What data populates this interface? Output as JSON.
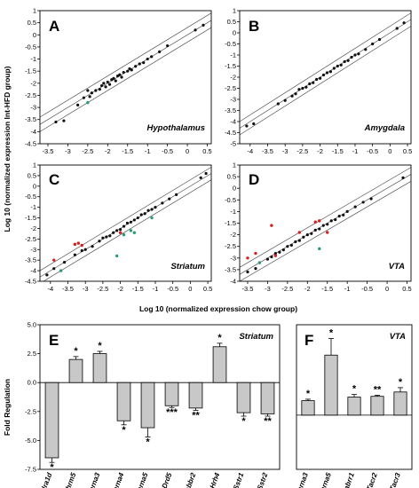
{
  "figure": {
    "scatter_y_label": "Log 10 (normalized expression Int-HFD group)",
    "scatter_x_label": "Log 10 (normalized expression chow group)",
    "bar_y_label": "Fold Regulation"
  },
  "chart_data": [
    {
      "type": "scatter",
      "panel": "A",
      "region": "Hypothalamus",
      "xlim": [
        -3.7,
        0.6
      ],
      "ylim": [
        -4.5,
        1.0
      ],
      "xticks": [
        -3.5,
        -3.0,
        -2.5,
        -2.0,
        -1.5,
        -1.0,
        -0.5,
        0.0,
        0.5
      ],
      "yticks": [
        -4.5,
        -4.0,
        -3.5,
        -3.0,
        -2.5,
        -2.0,
        -1.5,
        -1.0,
        -0.5,
        0.0,
        0.5,
        1.0
      ],
      "xtick_labels": [
        "-3.5",
        "-3",
        "-2.5",
        "-2",
        "-1.5",
        "-1",
        "-0.5",
        "0",
        "0.5"
      ],
      "ytick_labels": [
        "-4.5",
        "-4",
        "-3.5",
        "-3",
        "-2.5",
        "-2",
        "-1.5",
        "-1",
        "-0.5",
        "0",
        "0.5",
        "1"
      ],
      "boundary_offset": 0.3,
      "points": [
        [
          -3.3,
          -3.6
        ],
        [
          -3.1,
          -3.55
        ],
        [
          -2.75,
          -2.9
        ],
        [
          -2.6,
          -2.6
        ],
        [
          -2.5,
          -2.3
        ],
        [
          -2.45,
          -2.55
        ],
        [
          -2.4,
          -2.4
        ],
        [
          -2.3,
          -2.3
        ],
        [
          -2.2,
          -2.25
        ],
        [
          -2.15,
          -2.1
        ],
        [
          -2.1,
          -2.0
        ],
        [
          -2.05,
          -2.15
        ],
        [
          -2.0,
          -1.95
        ],
        [
          -1.95,
          -2.05
        ],
        [
          -1.9,
          -1.85
        ],
        [
          -1.85,
          -1.8
        ],
        [
          -1.8,
          -1.9
        ],
        [
          -1.75,
          -1.7
        ],
        [
          -1.7,
          -1.65
        ],
        [
          -1.65,
          -1.75
        ],
        [
          -1.6,
          -1.55
        ],
        [
          -1.5,
          -1.5
        ],
        [
          -1.45,
          -1.4
        ],
        [
          -1.4,
          -1.45
        ],
        [
          -1.3,
          -1.3
        ],
        [
          -1.2,
          -1.2
        ],
        [
          -1.1,
          -1.15
        ],
        [
          -1.0,
          -1.0
        ],
        [
          -0.9,
          -0.9
        ],
        [
          -0.7,
          -0.7
        ],
        [
          -0.5,
          -0.45
        ],
        [
          0.2,
          0.2
        ],
        [
          0.4,
          0.4
        ]
      ],
      "green_points": [
        [
          -2.5,
          -2.8
        ]
      ],
      "red_points": []
    },
    {
      "type": "scatter",
      "panel": "B",
      "region": "Amygdala",
      "xlim": [
        -4.3,
        0.6
      ],
      "ylim": [
        -5.0,
        1.0
      ],
      "xticks": [
        -4.0,
        -3.5,
        -3.0,
        -2.5,
        -2.0,
        -1.5,
        -1.0,
        -0.5,
        0.0,
        0.5
      ],
      "yticks": [
        -5.0,
        -4.5,
        -4.0,
        -3.5,
        -3.0,
        -2.5,
        -2.0,
        -1.5,
        -1.0,
        -0.5,
        0.0,
        0.5,
        1.0
      ],
      "xtick_labels": [
        "-4",
        "-3.5",
        "-3",
        "-2.5",
        "-2",
        "-1.5",
        "-1",
        "-0.5",
        "0",
        "0.5"
      ],
      "ytick_labels": [
        "-5",
        "-4.5",
        "-4",
        "-3.5",
        "-3",
        "-2.5",
        "-2",
        "-1.5",
        "-1",
        "-0.5",
        "0",
        "0.5",
        "1"
      ],
      "boundary_offset": 0.3,
      "points": [
        [
          -4.1,
          -4.2
        ],
        [
          -3.9,
          -4.1
        ],
        [
          -3.2,
          -3.2
        ],
        [
          -3.0,
          -3.05
        ],
        [
          -2.8,
          -2.85
        ],
        [
          -2.7,
          -2.75
        ],
        [
          -2.6,
          -2.55
        ],
        [
          -2.5,
          -2.5
        ],
        [
          -2.4,
          -2.45
        ],
        [
          -2.3,
          -2.3
        ],
        [
          -2.2,
          -2.25
        ],
        [
          -2.1,
          -2.1
        ],
        [
          -2.0,
          -2.05
        ],
        [
          -1.9,
          -1.9
        ],
        [
          -1.8,
          -1.8
        ],
        [
          -1.7,
          -1.75
        ],
        [
          -1.6,
          -1.6
        ],
        [
          -1.5,
          -1.5
        ],
        [
          -1.4,
          -1.45
        ],
        [
          -1.3,
          -1.3
        ],
        [
          -1.2,
          -1.25
        ],
        [
          -1.1,
          -1.1
        ],
        [
          -1.0,
          -1.0
        ],
        [
          -0.9,
          -0.95
        ],
        [
          -0.7,
          -0.75
        ],
        [
          -0.5,
          -0.5
        ],
        [
          -0.3,
          -0.3
        ],
        [
          0.2,
          0.2
        ],
        [
          0.4,
          0.45
        ]
      ],
      "green_points": [],
      "red_points": []
    },
    {
      "type": "scatter",
      "panel": "C",
      "region": "Striatum",
      "xlim": [
        -4.3,
        0.6
      ],
      "ylim": [
        -4.5,
        1.0
      ],
      "xticks": [
        -4.0,
        -3.5,
        -3.0,
        -2.5,
        -2.0,
        -1.5,
        -1.0,
        -0.5,
        0.0,
        0.5
      ],
      "yticks": [
        -4.5,
        -4.0,
        -3.5,
        -3.0,
        -2.5,
        -2.0,
        -1.5,
        -1.0,
        -0.5,
        0.0,
        0.5,
        1.0
      ],
      "xtick_labels": [
        "-4",
        "-3.5",
        "-3",
        "-2.5",
        "-2",
        "-1.5",
        "-1",
        "-0.5",
        "0",
        "0.5"
      ],
      "ytick_labels": [
        "-4.5",
        "-4",
        "-3.5",
        "-3",
        "-2.5",
        "-2",
        "-1.5",
        "-1",
        "-0.5",
        "0",
        "0.5",
        "1"
      ],
      "boundary_offset": 0.3,
      "points": [
        [
          -4.1,
          -4.2
        ],
        [
          -3.9,
          -3.9
        ],
        [
          -3.6,
          -3.6
        ],
        [
          -3.3,
          -3.25
        ],
        [
          -3.1,
          -3.05
        ],
        [
          -3.0,
          -3.0
        ],
        [
          -2.8,
          -2.85
        ],
        [
          -2.6,
          -2.6
        ],
        [
          -2.5,
          -2.45
        ],
        [
          -2.4,
          -2.4
        ],
        [
          -2.3,
          -2.35
        ],
        [
          -2.2,
          -2.2
        ],
        [
          -2.1,
          -2.1
        ],
        [
          -2.0,
          -2.05
        ],
        [
          -1.9,
          -1.9
        ],
        [
          -1.8,
          -1.75
        ],
        [
          -1.7,
          -1.7
        ],
        [
          -1.6,
          -1.6
        ],
        [
          -1.5,
          -1.5
        ],
        [
          -1.4,
          -1.35
        ],
        [
          -1.3,
          -1.3
        ],
        [
          -1.2,
          -1.15
        ],
        [
          -1.1,
          -1.1
        ],
        [
          -1.0,
          -1.0
        ],
        [
          -0.8,
          -0.8
        ],
        [
          -0.6,
          -0.6
        ],
        [
          -0.4,
          -0.4
        ],
        [
          0.3,
          0.4
        ],
        [
          0.45,
          0.6
        ]
      ],
      "green_points": [
        [
          -3.7,
          -4.0
        ],
        [
          -2.1,
          -3.3
        ],
        [
          -1.9,
          -2.3
        ],
        [
          -1.7,
          -2.1
        ],
        [
          -1.6,
          -2.2
        ],
        [
          -1.1,
          -1.5
        ]
      ],
      "red_points": [
        [
          -3.9,
          -3.5
        ],
        [
          -3.3,
          -2.75
        ],
        [
          -3.2,
          -2.7
        ],
        [
          -3.1,
          -2.8
        ],
        [
          -2.0,
          -2.2
        ]
      ]
    },
    {
      "type": "scatter",
      "panel": "D",
      "region": "VTA",
      "xlim": [
        -3.7,
        0.6
      ],
      "ylim": [
        -4.0,
        1.0
      ],
      "xticks": [
        -3.5,
        -3.0,
        -2.5,
        -2.0,
        -1.5,
        -1.0,
        -0.5,
        0.0,
        0.5
      ],
      "yticks": [
        -4.0,
        -3.5,
        -3.0,
        -2.5,
        -2.0,
        -1.5,
        -1.0,
        -0.5,
        0.0,
        0.5,
        1.0
      ],
      "xtick_labels": [
        "-3.5",
        "-3",
        "-2.5",
        "-2",
        "-1.5",
        "-1",
        "-0.5",
        "0",
        "0.5"
      ],
      "ytick_labels": [
        "-4",
        "-3.5",
        "-3",
        "-2.5",
        "-2",
        "-1.5",
        "-1",
        "-0.5",
        "0",
        "0.5",
        "1"
      ],
      "boundary_offset": 0.3,
      "points": [
        [
          -3.5,
          -3.6
        ],
        [
          -3.3,
          -3.45
        ],
        [
          -3.2,
          -3.2
        ],
        [
          -3.0,
          -3.05
        ],
        [
          -2.9,
          -2.95
        ],
        [
          -2.8,
          -2.8
        ],
        [
          -2.7,
          -2.75
        ],
        [
          -2.6,
          -2.65
        ],
        [
          -2.5,
          -2.5
        ],
        [
          -2.4,
          -2.45
        ],
        [
          -2.3,
          -2.3
        ],
        [
          -2.2,
          -2.25
        ],
        [
          -2.1,
          -2.1
        ],
        [
          -2.0,
          -2.0
        ],
        [
          -1.9,
          -1.95
        ],
        [
          -1.8,
          -1.8
        ],
        [
          -1.7,
          -1.75
        ],
        [
          -1.6,
          -1.6
        ],
        [
          -1.5,
          -1.55
        ],
        [
          -1.4,
          -1.4
        ],
        [
          -1.3,
          -1.35
        ],
        [
          -1.2,
          -1.2
        ],
        [
          -1.1,
          -1.15
        ],
        [
          -1.0,
          -1.0
        ],
        [
          -0.8,
          -0.8
        ],
        [
          -0.6,
          -0.6
        ],
        [
          -0.4,
          -0.45
        ],
        [
          0.4,
          0.45
        ]
      ],
      "green_points": [
        [
          -3.2,
          -3.2
        ],
        [
          -1.7,
          -2.6
        ]
      ],
      "red_points": [
        [
          -3.5,
          -3.0
        ],
        [
          -3.3,
          -2.8
        ],
        [
          -2.9,
          -1.6
        ],
        [
          -2.8,
          -2.9
        ],
        [
          -2.2,
          -1.9
        ],
        [
          -1.8,
          -1.45
        ],
        [
          -1.7,
          -1.4
        ],
        [
          -1.5,
          -1.9
        ]
      ]
    },
    {
      "type": "bar",
      "panel": "E",
      "region": "Striatum",
      "categories": [
        "Adra1d",
        "Chrm5",
        "Chrna3",
        "Chrna4",
        "Chrna5",
        "Drd5",
        "Gabbr2",
        "Hrh4",
        "Sstr1",
        "Sstr2"
      ],
      "values": [
        -6.5,
        2.0,
        2.5,
        -3.3,
        -3.9,
        -2.0,
        -2.2,
        3.1,
        -2.6,
        -2.7
      ],
      "errors": [
        0.4,
        0.25,
        0.2,
        0.35,
        0.8,
        0.15,
        0.2,
        0.3,
        0.3,
        0.2
      ],
      "significance": [
        "*",
        "*",
        "*",
        "*",
        "*",
        "***",
        "**",
        "*",
        "*",
        "**"
      ],
      "ylim": [
        -7.5,
        5.0
      ],
      "yticks": [
        -7.5,
        -5.0,
        -2.5,
        0.0,
        2.5,
        5.0
      ],
      "ytick_labels": [
        "-7.5",
        "-5.0",
        "-2.5",
        "0.0",
        "2.5",
        "5.0"
      ]
    },
    {
      "type": "bar",
      "panel": "F",
      "region": "VTA",
      "categories": [
        "Chrna3",
        "Chrna5",
        "Gabrr1",
        "Tacr2",
        "Tacr3"
      ],
      "values": [
        2.0,
        8.3,
        2.5,
        2.6,
        3.2
      ],
      "errors": [
        0.2,
        2.3,
        0.35,
        0.15,
        0.6
      ],
      "significance": [
        "*",
        "*",
        "*",
        "**",
        "*"
      ],
      "ylim": [
        -7.5,
        12.5
      ]
    }
  ]
}
